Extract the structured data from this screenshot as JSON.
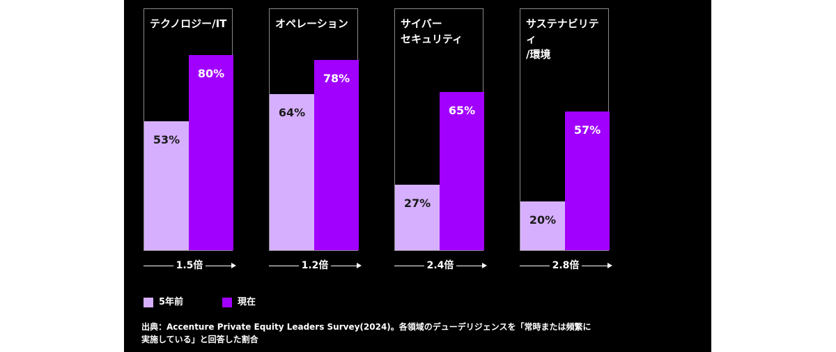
{
  "chart_data": {
    "type": "bar",
    "categories": [
      "テクノロジー/IT",
      "オペレーション",
      "サイバー\nセキュリティ",
      "サステナビリティ\n/環境"
    ],
    "series": [
      {
        "name": "5年前",
        "values": [
          53,
          64,
          27,
          20
        ],
        "labels": [
          "53%",
          "64%",
          "27%",
          "20%"
        ],
        "color": "#d6b0ff"
      },
      {
        "name": "現在",
        "values": [
          80,
          78,
          65,
          57
        ],
        "labels": [
          "80%",
          "78%",
          "65%",
          "57%"
        ],
        "color": "#a100ff"
      }
    ],
    "multipliers": [
      "1.5倍",
      "1.2倍",
      "2.4倍",
      "2.8倍"
    ],
    "ylim": [
      0,
      100
    ],
    "grid": false,
    "legend_position": "bottom-left"
  },
  "colors": {
    "background": "#000000",
    "panel_border": "#8a8a8a",
    "label_on_light": "#1a1a1a",
    "label_on_dark": "#ffffff"
  },
  "source_note": "出典：Accenture Private Equity Leaders Survey(2024)。各領域のデューデリジェンスを「常時または頻繁に\n実施している」と回答した割合"
}
